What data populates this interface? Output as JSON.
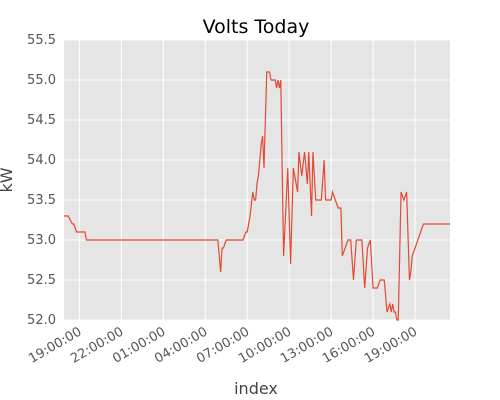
{
  "chart_data": {
    "type": "line",
    "title": "Volts Today",
    "xlabel": "index",
    "ylabel": "kW",
    "ylim": [
      52.0,
      55.5
    ],
    "xlim_hours": [
      -3.1,
      24.5
    ],
    "grid": true,
    "y_ticks": [
      "52.0",
      "52.5",
      "53.0",
      "53.5",
      "54.0",
      "54.5",
      "55.0",
      "55.5"
    ],
    "x_ticks": [
      "19:00:00",
      "22:00:00",
      "01:00:00",
      "04:00:00",
      "07:00:00",
      "10:00:00",
      "13:00:00",
      "16:00:00",
      "19:00:00"
    ],
    "series": [
      {
        "color": "#e24a33",
        "x_hours": [
          -3.1,
          -2.9,
          -2.8,
          -2.5,
          -2.4,
          -2.2,
          -1.6,
          -1.5,
          7.9,
          8.1,
          8.2,
          8.3,
          8.5,
          8.6,
          8.8,
          9.0,
          9.2,
          9.4,
          9.7,
          9.9,
          10.0,
          10.2,
          10.4,
          10.5,
          10.6,
          10.7,
          10.8,
          10.9,
          11.0,
          11.1,
          11.2,
          11.4,
          11.6,
          11.7,
          11.9,
          12.0,
          12.1,
          12.2,
          12.3,
          12.4,
          12.6,
          12.9,
          13.1,
          13.3,
          13.6,
          13.7,
          13.9,
          14.1,
          14.3,
          14.4,
          14.6,
          14.7,
          14.9,
          15.1,
          15.3,
          15.5,
          15.6,
          15.8,
          16.0,
          16.1,
          16.3,
          16.5,
          16.7,
          16.8,
          17.0,
          17.2,
          17.4,
          17.6,
          17.8,
          18.0,
          18.2,
          18.4,
          18.6,
          18.8,
          19.0,
          19.3,
          19.5,
          19.8,
          20.0,
          20.2,
          20.3,
          20.4,
          20.5,
          20.6,
          20.7,
          20.8,
          21.0,
          21.2,
          21.4,
          21.6,
          21.7,
          21.8,
          22.0,
          22.2,
          22.4,
          22.6,
          22.8,
          23.0,
          23.3,
          23.5,
          23.8,
          24.0,
          24.3,
          24.5
        ],
        "values": [
          53.3,
          53.3,
          53.3,
          53.2,
          53.2,
          53.1,
          53.1,
          53.0,
          53.0,
          52.6,
          52.9,
          52.9,
          53.0,
          53.0,
          53.0,
          53.0,
          53.0,
          53.0,
          53.0,
          53.1,
          53.1,
          53.3,
          53.6,
          53.5,
          53.5,
          53.7,
          53.8,
          54.0,
          54.2,
          54.3,
          53.9,
          55.1,
          55.1,
          55.0,
          55.0,
          55.0,
          54.9,
          55.0,
          54.9,
          55.0,
          52.8,
          53.9,
          52.7,
          53.9,
          53.6,
          54.1,
          53.8,
          54.1,
          53.7,
          54.1,
          53.3,
          54.1,
          53.5,
          53.5,
          53.5,
          54.0,
          53.5,
          53.5,
          53.5,
          53.6,
          53.5,
          53.4,
          53.4,
          52.8,
          52.9,
          53.0,
          53.0,
          52.5,
          53.0,
          53.0,
          53.0,
          52.4,
          52.9,
          53.0,
          52.4,
          52.4,
          52.5,
          52.5,
          52.1,
          52.2,
          52.1,
          52.2,
          52.1,
          52.1,
          52.0,
          52.0,
          53.6,
          53.5,
          53.6,
          52.5,
          52.6,
          52.8,
          52.9,
          53.0,
          53.1,
          53.2,
          53.2,
          53.2,
          53.2,
          53.2,
          53.2,
          53.2,
          53.2,
          53.2
        ]
      }
    ]
  }
}
